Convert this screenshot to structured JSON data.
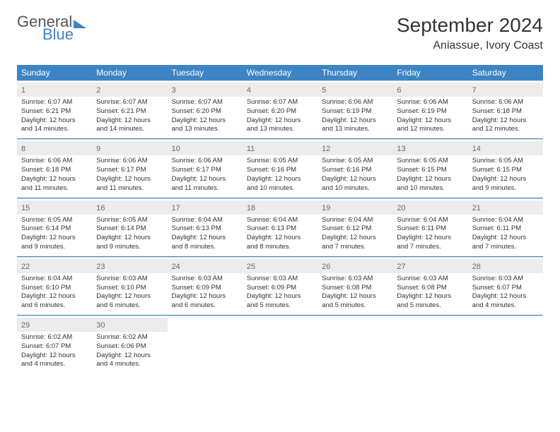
{
  "brand": {
    "line1": "General",
    "line2": "Blue",
    "accent_color": "#3d84c4"
  },
  "title": "September 2024",
  "location": "Aniassue, Ivory Coast",
  "colors": {
    "header_bg": "#3d84c4",
    "header_text": "#ffffff",
    "daynum_bg": "#ececec",
    "daynum_text": "#6a6a6a",
    "body_text": "#333333",
    "week_divider": "#3d84c4",
    "day_border": "#d8d8d8",
    "background": "#ffffff"
  },
  "typography": {
    "title_fontsize": 28,
    "location_fontsize": 16,
    "dow_fontsize": 12,
    "daynum_fontsize": 11,
    "info_fontsize": 9.5,
    "font_family": "Arial"
  },
  "days_of_week": [
    "Sunday",
    "Monday",
    "Tuesday",
    "Wednesday",
    "Thursday",
    "Friday",
    "Saturday"
  ],
  "weeks": [
    [
      {
        "n": "1",
        "sunrise": "6:07 AM",
        "sunset": "6:21 PM",
        "daylight": "12 hours and 14 minutes."
      },
      {
        "n": "2",
        "sunrise": "6:07 AM",
        "sunset": "6:21 PM",
        "daylight": "12 hours and 14 minutes."
      },
      {
        "n": "3",
        "sunrise": "6:07 AM",
        "sunset": "6:20 PM",
        "daylight": "12 hours and 13 minutes."
      },
      {
        "n": "4",
        "sunrise": "6:07 AM",
        "sunset": "6:20 PM",
        "daylight": "12 hours and 13 minutes."
      },
      {
        "n": "5",
        "sunrise": "6:06 AM",
        "sunset": "6:19 PM",
        "daylight": "12 hours and 13 minutes."
      },
      {
        "n": "6",
        "sunrise": "6:06 AM",
        "sunset": "6:19 PM",
        "daylight": "12 hours and 12 minutes."
      },
      {
        "n": "7",
        "sunrise": "6:06 AM",
        "sunset": "6:18 PM",
        "daylight": "12 hours and 12 minutes."
      }
    ],
    [
      {
        "n": "8",
        "sunrise": "6:06 AM",
        "sunset": "6:18 PM",
        "daylight": "12 hours and 11 minutes."
      },
      {
        "n": "9",
        "sunrise": "6:06 AM",
        "sunset": "6:17 PM",
        "daylight": "12 hours and 11 minutes."
      },
      {
        "n": "10",
        "sunrise": "6:06 AM",
        "sunset": "6:17 PM",
        "daylight": "12 hours and 11 minutes."
      },
      {
        "n": "11",
        "sunrise": "6:05 AM",
        "sunset": "6:16 PM",
        "daylight": "12 hours and 10 minutes."
      },
      {
        "n": "12",
        "sunrise": "6:05 AM",
        "sunset": "6:16 PM",
        "daylight": "12 hours and 10 minutes."
      },
      {
        "n": "13",
        "sunrise": "6:05 AM",
        "sunset": "6:15 PM",
        "daylight": "12 hours and 10 minutes."
      },
      {
        "n": "14",
        "sunrise": "6:05 AM",
        "sunset": "6:15 PM",
        "daylight": "12 hours and 9 minutes."
      }
    ],
    [
      {
        "n": "15",
        "sunrise": "6:05 AM",
        "sunset": "6:14 PM",
        "daylight": "12 hours and 9 minutes."
      },
      {
        "n": "16",
        "sunrise": "6:05 AM",
        "sunset": "6:14 PM",
        "daylight": "12 hours and 9 minutes."
      },
      {
        "n": "17",
        "sunrise": "6:04 AM",
        "sunset": "6:13 PM",
        "daylight": "12 hours and 8 minutes."
      },
      {
        "n": "18",
        "sunrise": "6:04 AM",
        "sunset": "6:13 PM",
        "daylight": "12 hours and 8 minutes."
      },
      {
        "n": "19",
        "sunrise": "6:04 AM",
        "sunset": "6:12 PM",
        "daylight": "12 hours and 7 minutes."
      },
      {
        "n": "20",
        "sunrise": "6:04 AM",
        "sunset": "6:11 PM",
        "daylight": "12 hours and 7 minutes."
      },
      {
        "n": "21",
        "sunrise": "6:04 AM",
        "sunset": "6:11 PM",
        "daylight": "12 hours and 7 minutes."
      }
    ],
    [
      {
        "n": "22",
        "sunrise": "6:04 AM",
        "sunset": "6:10 PM",
        "daylight": "12 hours and 6 minutes."
      },
      {
        "n": "23",
        "sunrise": "6:03 AM",
        "sunset": "6:10 PM",
        "daylight": "12 hours and 6 minutes."
      },
      {
        "n": "24",
        "sunrise": "6:03 AM",
        "sunset": "6:09 PM",
        "daylight": "12 hours and 6 minutes."
      },
      {
        "n": "25",
        "sunrise": "6:03 AM",
        "sunset": "6:09 PM",
        "daylight": "12 hours and 5 minutes."
      },
      {
        "n": "26",
        "sunrise": "6:03 AM",
        "sunset": "6:08 PM",
        "daylight": "12 hours and 5 minutes."
      },
      {
        "n": "27",
        "sunrise": "6:03 AM",
        "sunset": "6:08 PM",
        "daylight": "12 hours and 5 minutes."
      },
      {
        "n": "28",
        "sunrise": "6:03 AM",
        "sunset": "6:07 PM",
        "daylight": "12 hours and 4 minutes."
      }
    ],
    [
      {
        "n": "29",
        "sunrise": "6:02 AM",
        "sunset": "6:07 PM",
        "daylight": "12 hours and 4 minutes."
      },
      {
        "n": "30",
        "sunrise": "6:02 AM",
        "sunset": "6:06 PM",
        "daylight": "12 hours and 4 minutes."
      },
      null,
      null,
      null,
      null,
      null
    ]
  ],
  "labels": {
    "sunrise": "Sunrise:",
    "sunset": "Sunset:",
    "daylight": "Daylight:"
  }
}
